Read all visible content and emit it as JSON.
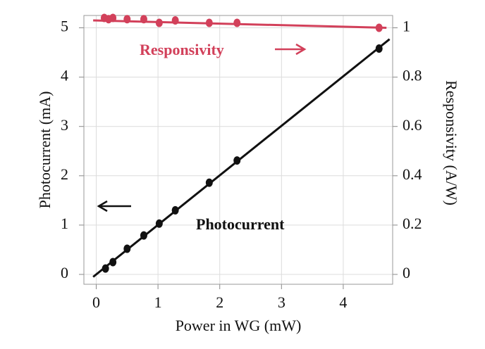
{
  "chart_data": {
    "type": "scatter",
    "x_label": "Power in WG (mW)",
    "y_label": "Photocurrent (mA)",
    "y2_label": "Responsivity (A/W)",
    "xlim": [
      -0.2,
      4.8
    ],
    "xticks": [
      0,
      1,
      2,
      3,
      4
    ],
    "ylim": [
      -0.2,
      5.25
    ],
    "yticks": [
      0,
      1,
      2,
      3,
      4,
      5
    ],
    "y2lim": [
      -0.04,
      1.05
    ],
    "y2ticks": [
      0,
      0.2,
      0.4,
      0.6,
      0.8,
      1
    ],
    "grid": true,
    "series": [
      {
        "name": "Photocurrent",
        "color": "#111111",
        "x": [
          0.15,
          0.27,
          0.5,
          0.77,
          1.02,
          1.28,
          1.83,
          2.28,
          4.58
        ],
        "values": [
          0.12,
          0.25,
          0.52,
          0.79,
          1.03,
          1.3,
          1.86,
          2.31,
          4.58
        ],
        "fit": {
          "x": [
            -0.05,
            4.75
          ],
          "values": [
            -0.05,
            4.77
          ]
        }
      },
      {
        "name": "Responsivity",
        "color": "#d2405a",
        "axis": "y2",
        "x": [
          0.13,
          0.2,
          0.27,
          0.5,
          0.77,
          1.02,
          1.28,
          1.83,
          2.28,
          4.58
        ],
        "values": [
          1.04,
          1.035,
          1.04,
          1.035,
          1.035,
          1.02,
          1.03,
          1.02,
          1.02,
          1.0
        ],
        "fit": {
          "x": [
            -0.05,
            4.7
          ],
          "values": [
            1.03,
            1.0
          ]
        }
      }
    ]
  }
}
